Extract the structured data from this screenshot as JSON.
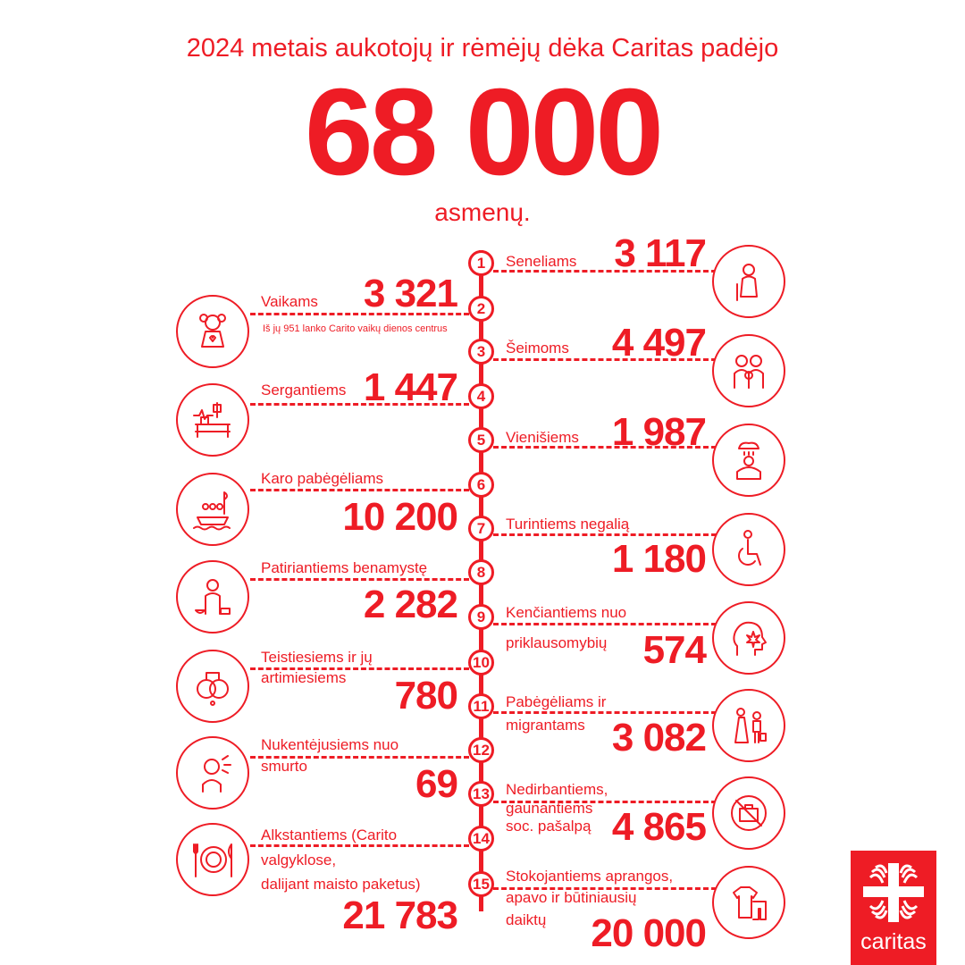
{
  "header": {
    "title": "2024 metais aukotojų ir rėmėjų dėka Caritas padėjo",
    "total": "68 000",
    "unit": "asmenų."
  },
  "colors": {
    "accent": "#ee1c25"
  },
  "items": [
    {
      "number": "1",
      "label": [
        "Seneliams"
      ],
      "value": "3 117",
      "icon": "elderly-person-icon"
    },
    {
      "number": "2",
      "label": [
        "Vaikams"
      ],
      "value": "3 321",
      "note": "Iš jų 951 lanko Carito vaikų dienos centrus",
      "icon": "doll-icon"
    },
    {
      "number": "3",
      "label": [
        "Šeimoms"
      ],
      "value": "4 497",
      "icon": "family-icon"
    },
    {
      "number": "4",
      "label": [
        "Sergantiems"
      ],
      "value": "1 447",
      "icon": "hospital-bed-icon"
    },
    {
      "number": "5",
      "label": [
        "Vienišiems"
      ],
      "value": "1 987",
      "icon": "lonely-person-rain-icon"
    },
    {
      "number": "6",
      "label": [
        "Karo pabėgėliams"
      ],
      "value": "10 200",
      "icon": "refugee-boat-icon"
    },
    {
      "number": "7",
      "label": [
        "Turintiems negalią"
      ],
      "value": "1 180",
      "icon": "wheelchair-icon"
    },
    {
      "number": "8",
      "label": [
        "Patiriantiems benamystę"
      ],
      "value": "2 282",
      "icon": "homeless-person-icon"
    },
    {
      "number": "9",
      "label": [
        "Kenčiantiems nuo",
        "priklausomybių"
      ],
      "value": "574",
      "icon": "addiction-head-icon"
    },
    {
      "number": "10",
      "label": [
        "Teistiesiems ir jų",
        "artimiesiems"
      ],
      "value": "780",
      "icon": "handcuffs-icon"
    },
    {
      "number": "11",
      "label": [
        "Pabėgėliams ir",
        "migrantams"
      ],
      "value": "3 082",
      "icon": "migrants-icon"
    },
    {
      "number": "12",
      "label": [
        "Nukentėjusiems nuo",
        "smurto"
      ],
      "value": "69",
      "icon": "violence-victim-icon"
    },
    {
      "number": "13",
      "label": [
        "Nedirbantiems,",
        "gaunantiems",
        "soc. pašalpą"
      ],
      "value": "4 865",
      "icon": "no-work-icon"
    },
    {
      "number": "14",
      "label": [
        "Alkstantiems (Carito",
        "valgyklose,",
        "dalijant maisto paketus)"
      ],
      "value": "21 783",
      "icon": "plate-cutlery-icon"
    },
    {
      "number": "15",
      "label": [
        "Stokojantiems aprangos,",
        "apavo ir būtiniausių",
        "daiktų"
      ],
      "value": "20 000",
      "icon": "clothing-icon"
    }
  ],
  "logo": {
    "text": "caritas"
  }
}
